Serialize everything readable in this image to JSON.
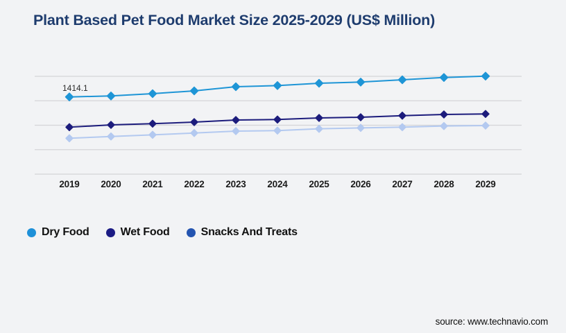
{
  "page": {
    "title": "Plant Based Pet Food Market Size 2025-2029 (US$ Million)",
    "source": "source: www.technavio.com",
    "background_color": "#f2f3f5",
    "title_color": "#1e3c6e",
    "gridline_color": "#d4d4d7"
  },
  "chart_data": {
    "type": "line",
    "title": "Plant Based Pet Food Market Size 2025-2029 (US$ Million)",
    "ylabel": "US$ Million",
    "xlabel": "",
    "categories": [
      "2019",
      "2020",
      "2021",
      "2022",
      "2023",
      "2024",
      "2025",
      "2026",
      "2027",
      "2028",
      "2029"
    ],
    "ylim": [
      0,
      2000
    ],
    "grid": "horizontal",
    "gridline_count": 5,
    "marker": "diamond",
    "legend_position": "bottom-left",
    "labeled_point": {
      "series": "Dry Food",
      "x": "2019",
      "label": "1414.1"
    },
    "series": [
      {
        "name": "Dry Food",
        "color": "#1e95d6",
        "legend_color": "#1e90d8",
        "values": [
          1414.1,
          1432,
          1474,
          1525,
          1601,
          1622,
          1664,
          1686,
          1728,
          1770,
          1795
        ]
      },
      {
        "name": "Wet Food",
        "color": "#1c1c7c",
        "legend_color": "#1b1b84",
        "values": [
          860,
          902,
          924,
          953,
          991,
          1000,
          1029,
          1042,
          1071,
          1093,
          1102
        ]
      },
      {
        "name": "Snacks And Treats",
        "color": "#b3c9f0",
        "legend_color": "#2454b0",
        "values": [
          657,
          690,
          720,
          753,
          788,
          797,
          830,
          847,
          860,
          881,
          889
        ]
      }
    ]
  }
}
